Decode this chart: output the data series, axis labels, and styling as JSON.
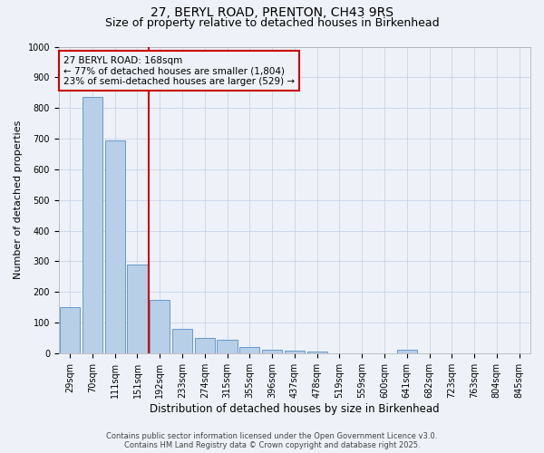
{
  "title_line1": "27, BERYL ROAD, PRENTON, CH43 9RS",
  "title_line2": "Size of property relative to detached houses in Birkenhead",
  "xlabel": "Distribution of detached houses by size in Birkenhead",
  "ylabel": "Number of detached properties",
  "categories": [
    "29sqm",
    "70sqm",
    "111sqm",
    "151sqm",
    "192sqm",
    "233sqm",
    "274sqm",
    "315sqm",
    "355sqm",
    "396sqm",
    "437sqm",
    "478sqm",
    "519sqm",
    "559sqm",
    "600sqm",
    "641sqm",
    "682sqm",
    "723sqm",
    "763sqm",
    "804sqm",
    "845sqm"
  ],
  "values": [
    150,
    835,
    695,
    290,
    175,
    80,
    50,
    45,
    20,
    10,
    8,
    5,
    0,
    0,
    0,
    10,
    0,
    0,
    0,
    0,
    0
  ],
  "bar_color": "#b8cfe8",
  "bar_edgecolor": "#6699cc",
  "grid_color": "#c8d4e8",
  "background_color": "#eef2f8",
  "annotation_text": "27 BERYL ROAD: 168sqm\n← 77% of detached houses are smaller (1,804)\n23% of semi-detached houses are larger (529) →",
  "annotation_box_color": "#cc0000",
  "vline_x_index": 3.5,
  "vline_color": "#cc0000",
  "ylim": [
    0,
    1000
  ],
  "yticks": [
    0,
    100,
    200,
    300,
    400,
    500,
    600,
    700,
    800,
    900,
    1000
  ],
  "footer_line1": "Contains HM Land Registry data © Crown copyright and database right 2025.",
  "footer_line2": "Contains public sector information licensed under the Open Government Licence v3.0.",
  "title_fontsize": 10,
  "subtitle_fontsize": 9,
  "xlabel_fontsize": 8.5,
  "ylabel_fontsize": 8,
  "tick_fontsize": 7,
  "footer_fontsize": 6,
  "annot_fontsize": 7.5
}
